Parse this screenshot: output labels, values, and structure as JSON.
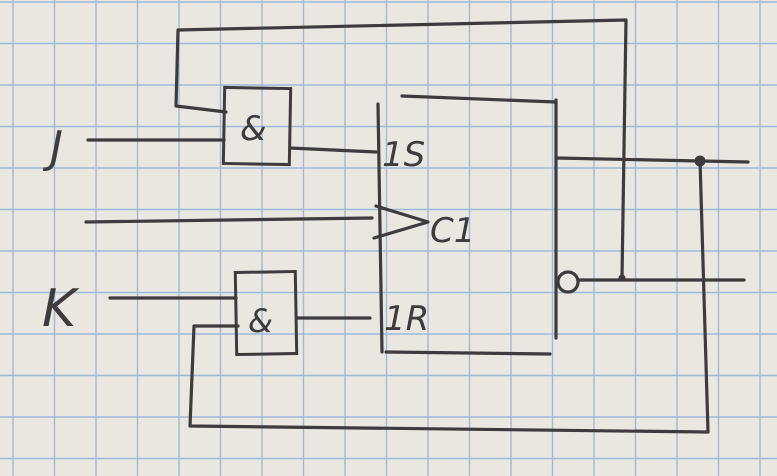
{
  "inputs": {
    "j": "J",
    "k": "K"
  },
  "gates": {
    "top": "&",
    "bottom": "&"
  },
  "flipflop": {
    "set": "1S",
    "clock": "C1",
    "reset": "1R"
  },
  "colors": {
    "paper": "#e9e7e0",
    "grid": "#9fb9d8",
    "ink": "#3d3b3e"
  }
}
